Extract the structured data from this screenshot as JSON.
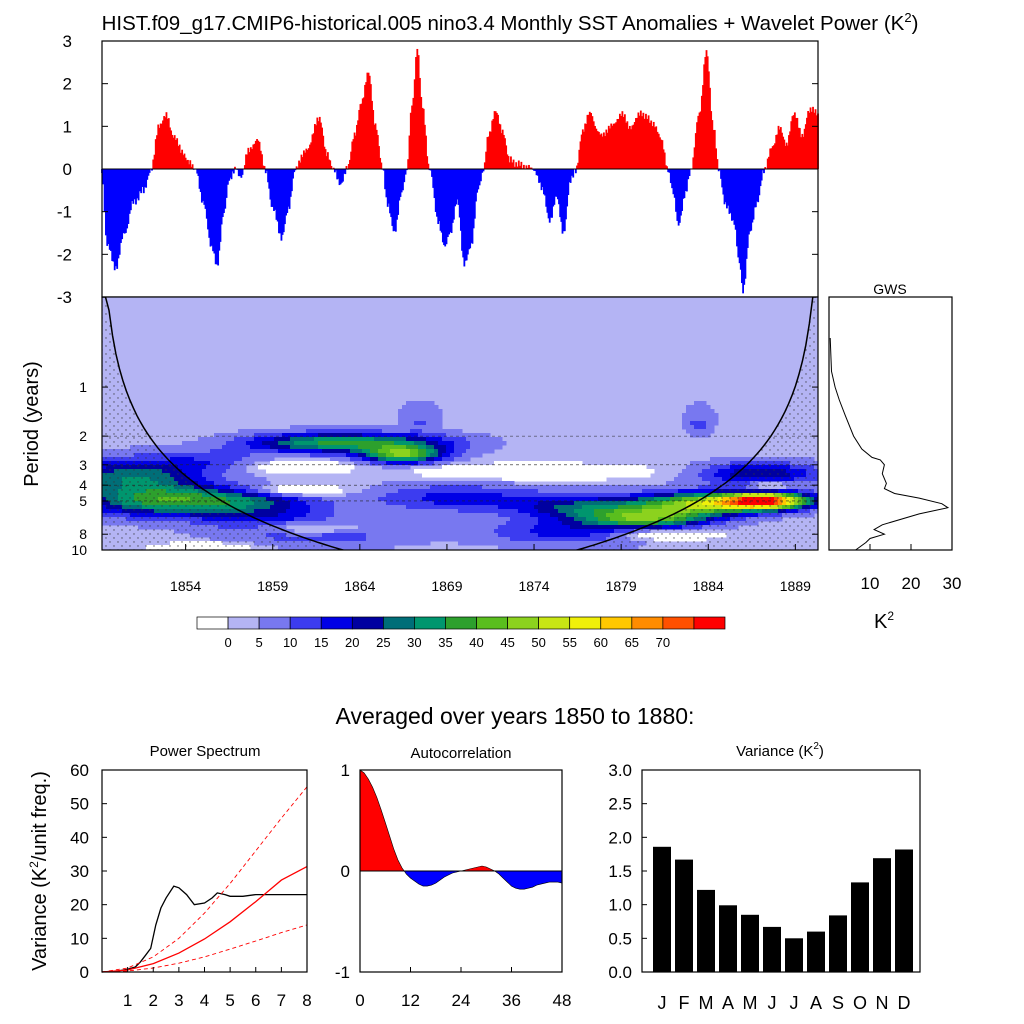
{
  "title": "HIST.f09_g17.CMIP6-historical.005 nino3.4 Monthly SST Anomalies + Wavelet Power (K",
  "title_sup": "2",
  "title_close": ")",
  "colors": {
    "positive": "#ff0000",
    "negative": "#0000ff",
    "bar": "#000000",
    "wavelet_bg": "#b4b4f4"
  },
  "chart_data": [
    {
      "id": "sst_anomaly",
      "type": "area",
      "xlim": [
        1849.2,
        1890.3
      ],
      "ylim": [
        -3,
        3
      ],
      "ytick_labels": [
        "3",
        "2",
        "1",
        "0",
        "-1",
        "-2",
        "-3"
      ],
      "knots": [
        [
          1849.2,
          -0.1
        ],
        [
          1849.5,
          -1.8
        ],
        [
          1850.0,
          -2.3
        ],
        [
          1850.5,
          -1.5
        ],
        [
          1851.0,
          -0.8
        ],
        [
          1851.6,
          -0.5
        ],
        [
          1852.0,
          0.0
        ],
        [
          1852.5,
          1.0
        ],
        [
          1852.9,
          1.3
        ],
        [
          1853.3,
          0.8
        ],
        [
          1853.8,
          0.4
        ],
        [
          1854.2,
          0.2
        ],
        [
          1854.6,
          0.0
        ],
        [
          1855.0,
          -0.8
        ],
        [
          1855.5,
          -1.8
        ],
        [
          1855.8,
          -2.3
        ],
        [
          1856.2,
          -1.0
        ],
        [
          1856.5,
          -0.3
        ],
        [
          1856.9,
          0.0
        ],
        [
          1857.2,
          -0.2
        ],
        [
          1857.6,
          0.4
        ],
        [
          1858.1,
          0.7
        ],
        [
          1858.6,
          0.0
        ],
        [
          1859.0,
          -0.9
        ],
        [
          1859.5,
          -1.6
        ],
        [
          1859.9,
          -0.9
        ],
        [
          1860.3,
          0.0
        ],
        [
          1861.0,
          0.5
        ],
        [
          1861.7,
          1.2
        ],
        [
          1862.1,
          0.4
        ],
        [
          1862.5,
          0.0
        ],
        [
          1862.9,
          -0.4
        ],
        [
          1863.3,
          0.0
        ],
        [
          1863.7,
          0.8
        ],
        [
          1864.1,
          1.6
        ],
        [
          1864.5,
          2.3
        ],
        [
          1864.9,
          1.0
        ],
        [
          1865.3,
          0.0
        ],
        [
          1865.6,
          -0.8
        ],
        [
          1866.0,
          -1.5
        ],
        [
          1866.4,
          -0.6
        ],
        [
          1866.7,
          0.0
        ],
        [
          1867.0,
          1.5
        ],
        [
          1867.3,
          2.8
        ],
        [
          1867.6,
          1.5
        ],
        [
          1868.0,
          0.0
        ],
        [
          1868.5,
          -1.2
        ],
        [
          1868.9,
          -1.8
        ],
        [
          1869.2,
          -1.5
        ],
        [
          1869.6,
          -0.7
        ],
        [
          1870.0,
          -2.2
        ],
        [
          1870.4,
          -1.8
        ],
        [
          1870.8,
          -0.5
        ],
        [
          1871.1,
          0.0
        ],
        [
          1871.4,
          0.8
        ],
        [
          1871.8,
          1.4
        ],
        [
          1872.2,
          0.9
        ],
        [
          1872.6,
          0.2
        ],
        [
          1873.2,
          0.1
        ],
        [
          1874.0,
          0.0
        ],
        [
          1874.5,
          -0.5
        ],
        [
          1874.9,
          -1.2
        ],
        [
          1875.3,
          -0.6
        ],
        [
          1875.7,
          -1.5
        ],
        [
          1876.1,
          -0.3
        ],
        [
          1876.4,
          0.0
        ],
        [
          1876.8,
          0.9
        ],
        [
          1877.2,
          1.3
        ],
        [
          1877.8,
          0.8
        ],
        [
          1878.5,
          1.0
        ],
        [
          1879.0,
          1.3
        ],
        [
          1879.5,
          1.0
        ],
        [
          1880.2,
          1.3
        ],
        [
          1880.8,
          1.1
        ],
        [
          1881.3,
          0.7
        ],
        [
          1881.7,
          0.0
        ],
        [
          1882.0,
          -0.6
        ],
        [
          1882.3,
          -1.3
        ],
        [
          1882.7,
          -0.6
        ],
        [
          1883.0,
          0.0
        ],
        [
          1883.5,
          1.3
        ],
        [
          1883.9,
          2.8
        ],
        [
          1884.3,
          1.0
        ],
        [
          1884.6,
          0.0
        ],
        [
          1885.0,
          -0.8
        ],
        [
          1885.5,
          -1.3
        ],
        [
          1885.8,
          -2.2
        ],
        [
          1886.0,
          -2.9
        ],
        [
          1886.4,
          -1.5
        ],
        [
          1886.8,
          -0.8
        ],
        [
          1887.2,
          0.0
        ],
        [
          1887.7,
          0.5
        ],
        [
          1888.1,
          1.0
        ],
        [
          1888.5,
          0.6
        ],
        [
          1888.9,
          1.3
        ],
        [
          1889.4,
          0.8
        ],
        [
          1889.8,
          1.4
        ],
        [
          1890.3,
          1.3
        ]
      ]
    },
    {
      "id": "wavelet_power",
      "type": "heatmap",
      "ylabel": "Period (years)",
      "xlim": [
        1849.2,
        1890.3
      ],
      "xtick_labels": [
        "1854",
        "1859",
        "1864",
        "1869",
        "1874",
        "1879",
        "1884",
        "1889"
      ],
      "period_ticks": [
        "1",
        "2",
        "3",
        "4",
        "5",
        "8",
        "10"
      ],
      "colorbar_labels": [
        "0",
        "5",
        "10",
        "15",
        "20",
        "25",
        "30",
        "35",
        "40",
        "45",
        "50",
        "55",
        "60",
        "65",
        "70"
      ],
      "colorbar_colors": [
        "#ffffff",
        "#b4b4f4",
        "#7878f0",
        "#3c3cf0",
        "#0000e6",
        "#0000a0",
        "#006e78",
        "#00966e",
        "#2da02d",
        "#5abe1e",
        "#8cd21e",
        "#c8e614",
        "#f0f00a",
        "#ffc800",
        "#ff8c00",
        "#ff5000",
        "#ff0000"
      ],
      "blobs": [
        [
          1852.5,
          5.0,
          4.5,
          0.22,
          30
        ],
        [
          1851.0,
          3.5,
          4.0,
          0.25,
          25
        ],
        [
          1857.5,
          5.0,
          4.0,
          0.18,
          18
        ],
        [
          1859.0,
          6.5,
          4.0,
          0.2,
          12
        ],
        [
          1861.0,
          2.2,
          4.0,
          0.14,
          22
        ],
        [
          1866.5,
          2.6,
          2.3,
          0.12,
          38
        ],
        [
          1865.5,
          2.2,
          4.5,
          0.14,
          22
        ],
        [
          1867.5,
          1.5,
          1.0,
          0.18,
          10
        ],
        [
          1869.5,
          4.8,
          5.0,
          0.2,
          14
        ],
        [
          1877.0,
          5.5,
          4.0,
          0.18,
          22
        ],
        [
          1880.5,
          6.4,
          3.5,
          0.14,
          34
        ],
        [
          1883.5,
          5.2,
          3.5,
          0.16,
          42
        ],
        [
          1887.3,
          5.0,
          2.5,
          0.12,
          70
        ],
        [
          1887.0,
          3.4,
          3.5,
          0.16,
          22
        ],
        [
          1883.5,
          1.6,
          0.8,
          0.2,
          10
        ],
        [
          1876.0,
          7.8,
          5.0,
          0.18,
          14
        ],
        [
          1862.0,
          8.0,
          5.0,
          0.18,
          10
        ],
        [
          1855.5,
          2.8,
          3.0,
          0.16,
          8
        ]
      ],
      "holes": [
        [
          1860.6,
          3.1,
          2.5,
          0.08
        ],
        [
          1860.5,
          4.3,
          2.6,
          0.08
        ],
        [
          1874.0,
          3.3,
          6.0,
          0.1
        ],
        [
          1881.5,
          8.0,
          3.0,
          0.08
        ],
        [
          1887.5,
          4.0,
          1.2,
          0.07
        ],
        [
          1861.0,
          7.3,
          3.0,
          0.1
        ],
        [
          1855.0,
          9.6,
          2.5,
          0.06
        ]
      ]
    },
    {
      "id": "gws",
      "type": "line",
      "title": "GWS",
      "xlabel": "K",
      "xlabel_sup": "2",
      "xlim": [
        0,
        30
      ],
      "xtick_labels": [
        "10",
        "20",
        "30"
      ],
      "points": [
        [
          0.3,
          0.5
        ],
        [
          0.6,
          0.8
        ],
        [
          1.5,
          1.0
        ],
        [
          2.5,
          1.2
        ],
        [
          4.0,
          1.5
        ],
        [
          6.0,
          2.0
        ],
        [
          8.0,
          2.4
        ],
        [
          10.5,
          2.7
        ],
        [
          12.5,
          2.8
        ],
        [
          13.5,
          3.0
        ],
        [
          13.0,
          3.4
        ],
        [
          14.0,
          3.9
        ],
        [
          13.5,
          4.2
        ],
        [
          16.0,
          4.5
        ],
        [
          22.0,
          4.8
        ],
        [
          27.5,
          5.2
        ],
        [
          29.0,
          5.5
        ],
        [
          22.0,
          6.0
        ],
        [
          13.0,
          7.0
        ],
        [
          11.0,
          7.5
        ],
        [
          13.5,
          8.0
        ],
        [
          10.0,
          8.5
        ],
        [
          9.0,
          9.0
        ],
        [
          6.5,
          10.0
        ]
      ]
    },
    {
      "id": "power_spectrum",
      "type": "line",
      "title": "Power Spectrum",
      "ylabel_pre": "Variance (K",
      "ylabel_sup": "2",
      "ylabel_post": "/unit freq.)",
      "xlim": [
        0,
        8
      ],
      "ylim": [
        0,
        60
      ],
      "xtick_labels": [
        "1",
        "2",
        "3",
        "4",
        "5",
        "6",
        "7",
        "8"
      ],
      "ytick_labels": [
        "0",
        "10",
        "20",
        "30",
        "40",
        "50",
        "60"
      ],
      "series": [
        {
          "name": "spectrum",
          "color": "#000000",
          "dash": false,
          "points": [
            [
              0,
              0
            ],
            [
              0.6,
              0.3
            ],
            [
              1.0,
              0.8
            ],
            [
              1.3,
              1.5
            ],
            [
              1.5,
              3
            ],
            [
              1.7,
              5
            ],
            [
              1.9,
              7
            ],
            [
              2.1,
              14
            ],
            [
              2.3,
              19
            ],
            [
              2.5,
              22
            ],
            [
              2.8,
              25.5
            ],
            [
              3.0,
              25
            ],
            [
              3.3,
              23
            ],
            [
              3.6,
              20
            ],
            [
              4.0,
              20.5
            ],
            [
              4.3,
              22
            ],
            [
              4.5,
              23.5
            ],
            [
              4.8,
              23
            ],
            [
              5.0,
              22.5
            ],
            [
              5.5,
              22.5
            ],
            [
              6.0,
              23
            ],
            [
              7.0,
              23
            ],
            [
              8.0,
              23
            ]
          ]
        },
        {
          "name": "red-noise",
          "color": "#ff0000",
          "dash": false,
          "points": [
            [
              0,
              0
            ],
            [
              1,
              0.6
            ],
            [
              2,
              2.5
            ],
            [
              3,
              5.6
            ],
            [
              4,
              9.8
            ],
            [
              5,
              14.9
            ],
            [
              6,
              20.9
            ],
            [
              7,
              27.3
            ],
            [
              8,
              31.3
            ]
          ]
        },
        {
          "name": "upper-95",
          "color": "#ff0000",
          "dash": true,
          "points": [
            [
              0,
              0
            ],
            [
              1,
              1.2
            ],
            [
              2,
              4.5
            ],
            [
              3,
              10
            ],
            [
              4,
              17.5
            ],
            [
              5,
              26.3
            ],
            [
              6,
              36
            ],
            [
              7,
              45.7
            ],
            [
              8,
              55
            ]
          ]
        },
        {
          "name": "lower",
          "color": "#ff0000",
          "dash": true,
          "points": [
            [
              0,
              0
            ],
            [
              1,
              0.3
            ],
            [
              2,
              1.2
            ],
            [
              3,
              2.6
            ],
            [
              4,
              4.5
            ],
            [
              5,
              6.8
            ],
            [
              6,
              9.2
            ],
            [
              7,
              11.7
            ],
            [
              8,
              14
            ]
          ]
        }
      ]
    },
    {
      "id": "autocorrelation",
      "type": "area",
      "title": "Autocorrelation",
      "xlim": [
        0,
        48
      ],
      "ylim": [
        -1,
        1
      ],
      "xtick_labels": [
        "0",
        "12",
        "24",
        "36",
        "48"
      ],
      "ytick_labels": [
        "1",
        "0",
        "-1"
      ],
      "points": [
        [
          0,
          1.0
        ],
        [
          1,
          0.97
        ],
        [
          2,
          0.91
        ],
        [
          3,
          0.83
        ],
        [
          4,
          0.73
        ],
        [
          5,
          0.61
        ],
        [
          6,
          0.48
        ],
        [
          7,
          0.35
        ],
        [
          8,
          0.22
        ],
        [
          9,
          0.11
        ],
        [
          10,
          0.03
        ],
        [
          11,
          -0.03
        ],
        [
          12,
          -0.07
        ],
        [
          13,
          -0.1
        ],
        [
          14,
          -0.13
        ],
        [
          15,
          -0.15
        ],
        [
          16,
          -0.15
        ],
        [
          17,
          -0.14
        ],
        [
          18,
          -0.12
        ],
        [
          19,
          -0.09
        ],
        [
          20,
          -0.06
        ],
        [
          21,
          -0.04
        ],
        [
          22,
          -0.02
        ],
        [
          23,
          -0.01
        ],
        [
          24,
          0.0
        ],
        [
          25,
          0.01
        ],
        [
          26,
          0.02
        ],
        [
          27,
          0.03
        ],
        [
          28,
          0.04
        ],
        [
          29,
          0.05
        ],
        [
          30,
          0.04
        ],
        [
          31,
          0.02
        ],
        [
          32,
          0.0
        ],
        [
          33,
          -0.03
        ],
        [
          34,
          -0.07
        ],
        [
          35,
          -0.11
        ],
        [
          36,
          -0.15
        ],
        [
          37,
          -0.17
        ],
        [
          38,
          -0.18
        ],
        [
          39,
          -0.18
        ],
        [
          40,
          -0.17
        ],
        [
          41,
          -0.16
        ],
        [
          42,
          -0.14
        ],
        [
          43,
          -0.13
        ],
        [
          44,
          -0.12
        ],
        [
          45,
          -0.11
        ],
        [
          46,
          -0.11
        ],
        [
          47,
          -0.11
        ],
        [
          48,
          -0.12
        ]
      ]
    },
    {
      "id": "monthly_variance",
      "type": "bar",
      "title_pre": "Variance (K",
      "title_sup": "2",
      "title_post": ")",
      "ylim": [
        0,
        3
      ],
      "ytick_labels": [
        "0.0",
        "0.5",
        "1.0",
        "1.5",
        "2.0",
        "2.5",
        "3.0"
      ],
      "categories": [
        "J",
        "F",
        "M",
        "A",
        "M",
        "J",
        "J",
        "A",
        "S",
        "O",
        "N",
        "D"
      ],
      "values": [
        1.86,
        1.67,
        1.22,
        0.99,
        0.85,
        0.67,
        0.5,
        0.6,
        0.84,
        1.33,
        1.69,
        1.82
      ]
    }
  ],
  "subtitle": "Averaged over years 1850 to 1880:"
}
